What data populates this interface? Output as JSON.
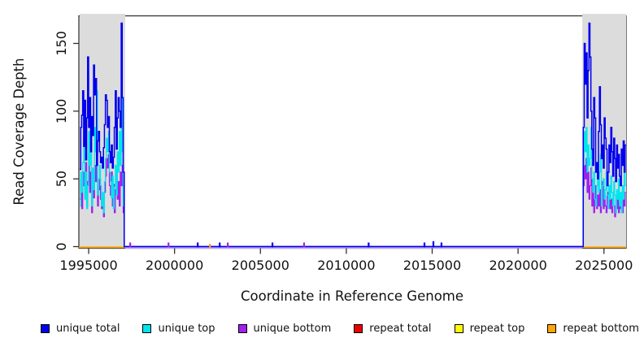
{
  "chart_data": {
    "type": "line",
    "title": "",
    "xlabel": "Coordinate in Reference Genome",
    "ylabel": "Read Coverage Depth",
    "xlim": [
      1994430,
      2026290
    ],
    "ylim": [
      0,
      171
    ],
    "xticks": [
      "1995000",
      "2000000",
      "2005000",
      "2010000",
      "2015000",
      "2020000",
      "2025000"
    ],
    "yticks": [
      "0",
      "50",
      "100",
      "150"
    ],
    "grid": false,
    "legend_position": "bottom",
    "legend": [
      {
        "label": "unique total",
        "color": "#0000EE"
      },
      {
        "label": "unique top",
        "color": "#00E5EE"
      },
      {
        "label": "unique bottom",
        "color": "#A020F0"
      },
      {
        "label": "repeat total",
        "color": "#EE0000"
      },
      {
        "label": "repeat top",
        "color": "#FFFF00"
      },
      {
        "label": "repeat bottom",
        "color": "#FFA500"
      }
    ],
    "highlight_color": "#DCDCDC",
    "highlighted_regions": [
      {
        "name": "left-flank",
        "x_start": 1994450,
        "x_end": 1997125
      },
      {
        "name": "right-flank",
        "x_start": 2023740,
        "x_end": 2026290
      }
    ],
    "region_series": [
      {
        "region": "left-flank",
        "x_start": 1994480,
        "x_step": 57.5,
        "unique_total": [
          57,
          88,
          97,
          115,
          74,
          108,
          64,
          95,
          140,
          88,
          110,
          70,
          96,
          82,
          134,
          112,
          124,
          60,
          78,
          85,
          70,
          62,
          66,
          58,
          73,
          90,
          112,
          108,
          88,
          96,
          70,
          62,
          75,
          58,
          66,
          88,
          115,
          72,
          95,
          110,
          100,
          88,
          165,
          110,
          55,
          0
        ],
        "unique_top": [
          30,
          55,
          40,
          62,
          80,
          35,
          55,
          28,
          45,
          85,
          60,
          75,
          30,
          58,
          42,
          88,
          70,
          115,
          38,
          50,
          60,
          45,
          30,
          40,
          25,
          48,
          65,
          80,
          70,
          85,
          55,
          48,
          36,
          52,
          28,
          44,
          60,
          38,
          70,
          55,
          85,
          60,
          112,
          70,
          30,
          0
        ],
        "unique_bottom": [
          35,
          50,
          28,
          45,
          55,
          38,
          62,
          30,
          48,
          70,
          40,
          55,
          25,
          44,
          36,
          60,
          48,
          75,
          30,
          42,
          50,
          35,
          28,
          36,
          22,
          40,
          52,
          65,
          58,
          68,
          45,
          38,
          55,
          30,
          46,
          25,
          42,
          58,
          35,
          48,
          30,
          55,
          45,
          60,
          25,
          0
        ],
        "repeat_total": 0,
        "repeat_top": 0,
        "repeat_bottom": 0
      },
      {
        "region": "right-flank",
        "x_start": 2023740,
        "x_step": 55.4,
        "unique_total": [
          0,
          88,
          150,
          120,
          143,
          95,
          130,
          165,
          140,
          100,
          72,
          60,
          110,
          95,
          55,
          62,
          50,
          85,
          118,
          90,
          65,
          75,
          58,
          95,
          80,
          72,
          45,
          55,
          75,
          62,
          88,
          70,
          52,
          80,
          65,
          48,
          75,
          58,
          68,
          52,
          45,
          72,
          60,
          78,
          55,
          75
        ],
        "unique_top": [
          0,
          60,
          85,
          70,
          88,
          55,
          75,
          60,
          65,
          88,
          50,
          40,
          55,
          35,
          30,
          45,
          60,
          40,
          55,
          68,
          30,
          45,
          50,
          35,
          42,
          55,
          38,
          28,
          45,
          35,
          52,
          40,
          30,
          48,
          38,
          25,
          42,
          35,
          50,
          30,
          40,
          25,
          45,
          35,
          55,
          45
        ],
        "unique_bottom": [
          0,
          45,
          60,
          50,
          65,
          40,
          55,
          35,
          45,
          58,
          30,
          40,
          25,
          35,
          45,
          28,
          38,
          30,
          42,
          25,
          35,
          48,
          28,
          38,
          30,
          25,
          40,
          32,
          45,
          28,
          35,
          25,
          38,
          30,
          22,
          35,
          28,
          40,
          25,
          32,
          28,
          38,
          25,
          35,
          30,
          40
        ],
        "repeat_total": 0,
        "repeat_top": 0,
        "repeat_bottom": 0
      }
    ],
    "middle_baseline": {
      "value": 0,
      "x_start": 1997125,
      "x_end": 2023740
    },
    "middle_spikes": [
      {
        "x": 1997420,
        "series": "unique bottom",
        "depth": 3
      },
      {
        "x": 1999650,
        "series": "unique bottom",
        "depth": 3
      },
      {
        "x": 2001350,
        "series": "unique total",
        "depth": 3
      },
      {
        "x": 2002060,
        "series": "repeat bottom",
        "depth": 2
      },
      {
        "x": 2002630,
        "series": "unique total",
        "depth": 3
      },
      {
        "x": 2003100,
        "series": "unique bottom",
        "depth": 3
      },
      {
        "x": 2005700,
        "series": "unique total",
        "depth": 3
      },
      {
        "x": 2007540,
        "series": "unique bottom",
        "depth": 3
      },
      {
        "x": 2011300,
        "series": "unique total",
        "depth": 3
      },
      {
        "x": 2014550,
        "series": "unique total",
        "depth": 3
      },
      {
        "x": 2015070,
        "series": "unique total",
        "depth": 4
      },
      {
        "x": 2015540,
        "series": "unique total",
        "depth": 3
      }
    ]
  }
}
